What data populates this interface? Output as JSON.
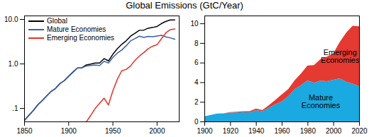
{
  "chart_data": [
    {
      "type": "line",
      "title": "Global Emissions (GtC/Year)",
      "log": "y",
      "legend": "top-left",
      "x": [
        1850,
        1855,
        1860,
        1865,
        1870,
        1875,
        1880,
        1885,
        1890,
        1895,
        1900,
        1905,
        1910,
        1915,
        1920,
        1925,
        1930,
        1935,
        1940,
        1945,
        1950,
        1955,
        1960,
        1965,
        1970,
        1975,
        1980,
        1985,
        1990,
        1995,
        2000,
        2005,
        2010,
        2015,
        2020
      ],
      "xlim": [
        1850,
        2025
      ],
      "xticks": [
        1850,
        1900,
        1950,
        2000
      ],
      "ylim": [
        0.05,
        12
      ],
      "yticks": [
        {
          "value": 0.1,
          "label": ".1"
        },
        {
          "value": 1,
          "label": "1.0"
        },
        {
          "value": 10,
          "label": "10.0"
        }
      ],
      "series": [
        {
          "name": "Global",
          "color": "#000000",
          "values": [
            0.054,
            0.07,
            0.09,
            0.12,
            0.15,
            0.19,
            0.24,
            0.28,
            0.36,
            0.42,
            0.53,
            0.66,
            0.81,
            0.82,
            0.95,
            0.99,
            1.05,
            1.05,
            1.32,
            1.17,
            1.65,
            2.2,
            2.75,
            3.3,
            4.2,
            4.9,
            5.7,
            5.75,
            6.35,
            6.6,
            6.95,
            8.1,
            9.05,
            9.75,
            9.7
          ]
        },
        {
          "name": "Mature Economies",
          "color": "#3b5ea8",
          "values": [
            0.054,
            0.07,
            0.09,
            0.12,
            0.15,
            0.19,
            0.24,
            0.28,
            0.36,
            0.42,
            0.53,
            0.66,
            0.81,
            0.82,
            0.9,
            0.92,
            0.95,
            0.92,
            1.15,
            1.05,
            1.4,
            1.75,
            2.05,
            2.55,
            3.3,
            3.7,
            4.2,
            3.95,
            4.15,
            4.1,
            4.25,
            4.4,
            4.05,
            3.85,
            3.6
          ]
        },
        {
          "name": "Emerging Economies",
          "color": "#e8302b",
          "values": [
            null,
            null,
            null,
            null,
            null,
            null,
            null,
            null,
            null,
            null,
            null,
            null,
            null,
            null,
            0.05,
            0.07,
            0.1,
            0.13,
            0.17,
            0.12,
            0.25,
            0.45,
            0.7,
            0.75,
            0.9,
            1.2,
            1.5,
            1.8,
            2.2,
            2.5,
            2.7,
            3.7,
            5.0,
            5.9,
            6.1
          ]
        }
      ]
    },
    {
      "type": "area",
      "stacked": true,
      "x": [
        1900,
        1905,
        1910,
        1915,
        1920,
        1925,
        1930,
        1935,
        1940,
        1945,
        1950,
        1955,
        1960,
        1965,
        1970,
        1975,
        1980,
        1985,
        1990,
        1995,
        2000,
        2005,
        2010,
        2015,
        2020
      ],
      "xlim": [
        1900,
        2020
      ],
      "xticks": [
        1900,
        1920,
        1940,
        1960,
        1980,
        2000,
        2020
      ],
      "ylim": [
        0,
        10.8
      ],
      "yticks": [
        0,
        2,
        4,
        6,
        8,
        10
      ],
      "series": [
        {
          "name": "Mature Economies",
          "color": "#1aa9e0",
          "values": [
            0.53,
            0.66,
            0.81,
            0.82,
            0.9,
            0.92,
            0.95,
            0.92,
            1.15,
            1.05,
            1.4,
            1.75,
            2.05,
            2.55,
            3.3,
            3.7,
            4.2,
            3.95,
            4.15,
            4.1,
            4.25,
            4.4,
            4.05,
            3.85,
            3.6
          ]
        },
        {
          "name": "Emerging Economies",
          "color": "#e53a31",
          "values": [
            0,
            0,
            0,
            0,
            0.05,
            0.07,
            0.1,
            0.13,
            0.17,
            0.12,
            0.25,
            0.45,
            0.7,
            0.75,
            0.9,
            1.2,
            1.5,
            1.8,
            2.2,
            2.5,
            2.7,
            3.7,
            5.0,
            5.9,
            6.1
          ]
        }
      ]
    }
  ]
}
